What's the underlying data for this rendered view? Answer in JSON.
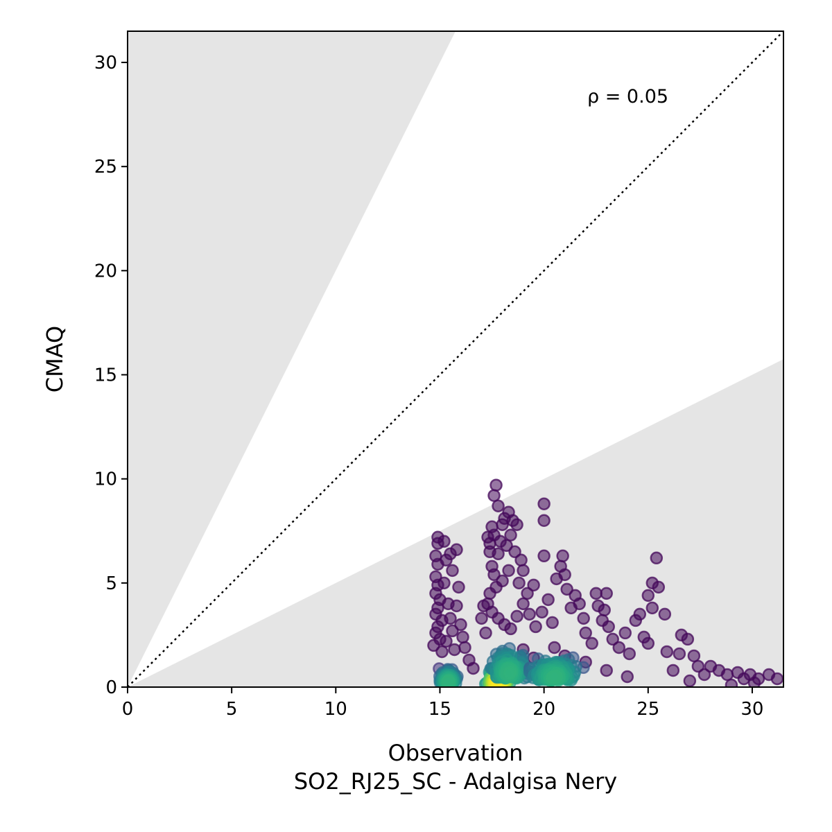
{
  "chart_data": {
    "type": "scatter",
    "title": "",
    "xlabel": "Observation",
    "xlabel_sub": "SO2_RJ25_SC - Adalgisa Nery",
    "ylabel": "CMAQ",
    "xlim": [
      0,
      31.5
    ],
    "ylim": [
      0,
      31.5
    ],
    "xticks": [
      0,
      5,
      10,
      15,
      20,
      25,
      30
    ],
    "yticks": [
      0,
      5,
      10,
      15,
      20,
      25,
      30
    ],
    "xtick_labels": [
      "0",
      "5",
      "10",
      "15",
      "20",
      "25",
      "30"
    ],
    "ytick_labels": [
      "0",
      "5",
      "10",
      "15",
      "20",
      "25",
      "30"
    ],
    "annotation": "ρ = 0.05",
    "reference_line": {
      "style": "dotted",
      "slope": 1
    },
    "shaded_regions": {
      "upper_slope": 2,
      "lower_slope": 0.5,
      "color": "#e5e5e5"
    },
    "colormap": "viridis",
    "grid": false,
    "points": [
      [
        14.9,
        7.2
      ],
      [
        14.9,
        6.9
      ],
      [
        14.8,
        6.3
      ],
      [
        14.9,
        5.9
      ],
      [
        14.8,
        5.3
      ],
      [
        14.9,
        4.9
      ],
      [
        14.8,
        4.5
      ],
      [
        15.0,
        4.2
      ],
      [
        14.9,
        3.8
      ],
      [
        14.8,
        3.5
      ],
      [
        15.1,
        3.2
      ],
      [
        14.9,
        2.9
      ],
      [
        14.8,
        2.6
      ],
      [
        15.0,
        2.3
      ],
      [
        14.7,
        2.0
      ],
      [
        15.1,
        1.7
      ],
      [
        15.3,
        6.1
      ],
      [
        15.2,
        5.0
      ],
      [
        15.4,
        4.0
      ],
      [
        15.5,
        3.3
      ],
      [
        15.6,
        2.7
      ],
      [
        15.3,
        2.2
      ],
      [
        15.7,
        1.8
      ],
      [
        15.8,
        6.6
      ],
      [
        15.6,
        5.6
      ],
      [
        15.9,
        4.8
      ],
      [
        15.8,
        3.9
      ],
      [
        16.0,
        3.0
      ],
      [
        16.1,
        2.4
      ],
      [
        16.2,
        1.9
      ],
      [
        16.4,
        1.3
      ],
      [
        16.6,
        0.9
      ],
      [
        15.2,
        7.0
      ],
      [
        15.5,
        6.4
      ],
      [
        17.1,
        3.9
      ],
      [
        17.0,
        3.3
      ],
      [
        17.2,
        2.6
      ],
      [
        17.3,
        7.2
      ],
      [
        17.4,
        6.9
      ],
      [
        17.5,
        7.7
      ],
      [
        17.6,
        7.3
      ],
      [
        17.7,
        9.7
      ],
      [
        17.6,
        9.2
      ],
      [
        17.8,
        8.7
      ],
      [
        17.4,
        6.5
      ],
      [
        17.5,
        5.8
      ],
      [
        17.6,
        5.4
      ],
      [
        17.8,
        6.4
      ],
      [
        17.9,
        7.0
      ],
      [
        18.0,
        7.8
      ],
      [
        18.1,
        8.1
      ],
      [
        18.3,
        8.4
      ],
      [
        18.5,
        8.0
      ],
      [
        18.7,
        7.8
      ],
      [
        18.4,
        7.3
      ],
      [
        18.2,
        6.8
      ],
      [
        18.6,
        6.5
      ],
      [
        18.9,
        6.1
      ],
      [
        19.0,
        5.6
      ],
      [
        18.8,
        5.0
      ],
      [
        18.3,
        5.6
      ],
      [
        18.0,
        5.1
      ],
      [
        17.7,
        4.8
      ],
      [
        17.4,
        4.5
      ],
      [
        17.3,
        4.0
      ],
      [
        17.5,
        3.6
      ],
      [
        17.8,
        3.3
      ],
      [
        18.1,
        3.0
      ],
      [
        18.4,
        2.8
      ],
      [
        18.7,
        3.4
      ],
      [
        19.0,
        4.0
      ],
      [
        19.2,
        4.5
      ],
      [
        19.5,
        4.9
      ],
      [
        19.3,
        3.5
      ],
      [
        19.6,
        2.9
      ],
      [
        19.9,
        3.6
      ],
      [
        20.0,
        6.3
      ],
      [
        20.0,
        8.0
      ],
      [
        20.0,
        8.8
      ],
      [
        20.2,
        4.2
      ],
      [
        20.4,
        3.1
      ],
      [
        20.6,
        5.2
      ],
      [
        20.8,
        5.8
      ],
      [
        20.9,
        6.3
      ],
      [
        21.0,
        5.4
      ],
      [
        21.1,
        4.7
      ],
      [
        21.3,
        3.8
      ],
      [
        21.5,
        4.4
      ],
      [
        21.7,
        4.0
      ],
      [
        21.9,
        3.3
      ],
      [
        22.0,
        2.6
      ],
      [
        22.3,
        2.1
      ],
      [
        22.5,
        4.5
      ],
      [
        22.6,
        3.9
      ],
      [
        22.8,
        3.2
      ],
      [
        23.0,
        4.5
      ],
      [
        22.9,
        3.7
      ],
      [
        23.1,
        2.9
      ],
      [
        23.3,
        2.3
      ],
      [
        23.6,
        1.9
      ],
      [
        23.9,
        2.6
      ],
      [
        24.1,
        1.6
      ],
      [
        24.4,
        3.2
      ],
      [
        24.6,
        3.5
      ],
      [
        24.8,
        2.4
      ],
      [
        25.0,
        2.1
      ],
      [
        25.2,
        3.8
      ],
      [
        25.0,
        4.4
      ],
      [
        25.2,
        5.0
      ],
      [
        25.5,
        4.8
      ],
      [
        25.4,
        6.2
      ],
      [
        25.8,
        3.5
      ],
      [
        25.9,
        1.7
      ],
      [
        26.2,
        0.8
      ],
      [
        26.5,
        1.6
      ],
      [
        26.6,
        2.5
      ],
      [
        26.9,
        2.3
      ],
      [
        27.2,
        1.5
      ],
      [
        27.4,
        1.0
      ],
      [
        27.7,
        0.6
      ],
      [
        28.0,
        1.0
      ],
      [
        28.4,
        0.8
      ],
      [
        28.8,
        0.6
      ],
      [
        29.3,
        0.7
      ],
      [
        29.6,
        0.4
      ],
      [
        29.9,
        0.6
      ],
      [
        30.3,
        0.4
      ],
      [
        30.8,
        0.6
      ],
      [
        31.2,
        0.4
      ],
      [
        30.1,
        0.2
      ],
      [
        29.0,
        0.1
      ],
      [
        27.0,
        0.3
      ],
      [
        24.0,
        0.5
      ],
      [
        23.0,
        0.8
      ],
      [
        22.0,
        1.2
      ],
      [
        21.0,
        1.5
      ],
      [
        20.5,
        1.9
      ],
      [
        19.5,
        1.4
      ],
      [
        19.0,
        1.8
      ]
    ],
    "dense_clusters": [
      {
        "x": 15.4,
        "y": 0.5,
        "spread_x": 0.55,
        "spread_y": 0.7
      },
      {
        "x": 17.8,
        "y": 0.4,
        "spread_x": 0.75,
        "spread_y": 0.8
      },
      {
        "x": 18.3,
        "y": 1.4,
        "spread_x": 1.2,
        "spread_y": 1.4
      },
      {
        "x": 20.5,
        "y": 1.0,
        "spread_x": 1.6,
        "spread_y": 1.2
      }
    ]
  }
}
